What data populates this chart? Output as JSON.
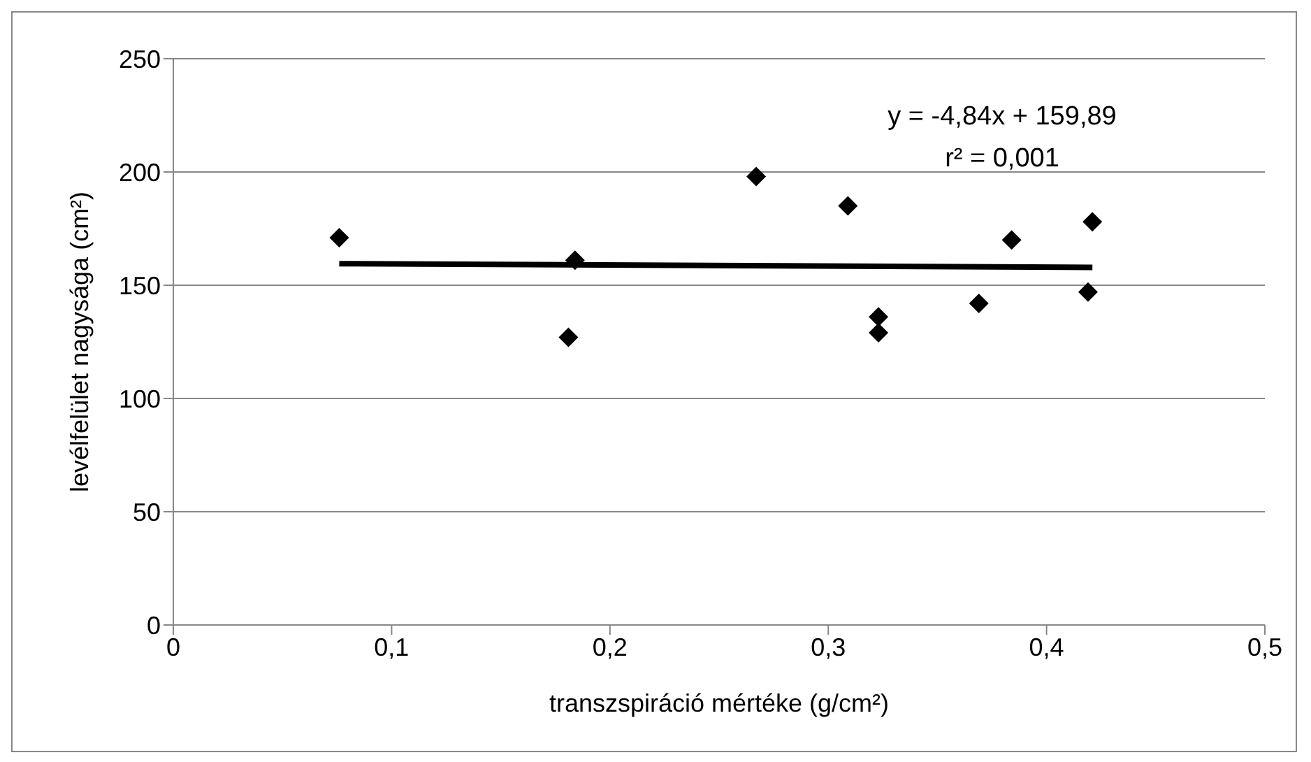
{
  "chart_data": {
    "type": "scatter",
    "xlabel": "transzspiráció mértéke (g/cm²)",
    "ylabel": "levélfelület nagysága (cm²)",
    "xlim": [
      0,
      0.5
    ],
    "xticks": [
      {
        "value": 0,
        "label": "0"
      },
      {
        "value": 0.1,
        "label": "0,1"
      },
      {
        "value": 0.2,
        "label": "0,2"
      },
      {
        "value": 0.3,
        "label": "0,3"
      },
      {
        "value": 0.4,
        "label": "0,4"
      },
      {
        "value": 0.5,
        "label": "0,5"
      }
    ],
    "ylim": [
      0,
      250
    ],
    "yticks": [
      0,
      50,
      100,
      150,
      200,
      250
    ],
    "grid": "y",
    "legend": false,
    "marker": "diamond",
    "annotations": [
      "y = -4,84x + 159,89",
      "r² = 0,001"
    ],
    "series": [
      {
        "color": "#000000",
        "x": [
          0.076,
          0.184,
          0.181,
          0.267,
          0.309,
          0.323,
          0.323,
          0.369,
          0.384,
          0.421,
          0.419
        ],
        "values": [
          171,
          161,
          127,
          198,
          185,
          136,
          129,
          142,
          170,
          178,
          147
        ]
      },
      {
        "type": "line",
        "marker": "none",
        "color": "#000000",
        "x": [
          0.076,
          0.421
        ],
        "values": [
          159.5,
          157.9
        ]
      }
    ]
  }
}
